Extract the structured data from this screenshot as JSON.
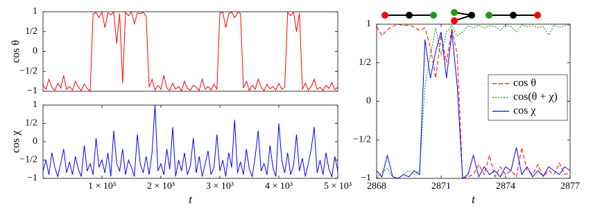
{
  "chart_data": [
    {
      "type": "line",
      "ylabel": "cos θ",
      "x": [
        0,
        50,
        100,
        150,
        200,
        250,
        300,
        350,
        400,
        450,
        500,
        550,
        600,
        650,
        700,
        750,
        800,
        850,
        900,
        950,
        1000,
        1050,
        1100,
        1150,
        1200,
        1250,
        1300,
        1350,
        1400,
        1450,
        1500,
        1550,
        1600,
        1650,
        1700,
        1750,
        1800,
        1850,
        1900,
        1950,
        2000,
        2050,
        2100,
        2150,
        2200,
        2250,
        2300,
        2350,
        2400,
        2450,
        2500,
        2550,
        2600,
        2650,
        2700,
        2750,
        2800,
        2850,
        2900,
        2950,
        3000,
        3050,
        3100,
        3150,
        3200,
        3250,
        3300,
        3350,
        3400,
        3450,
        3500,
        3550,
        3600,
        3650,
        3700,
        3750,
        3800,
        3850,
        3900,
        3950,
        4000,
        4050,
        4100,
        4150,
        4200,
        4250,
        4300,
        4350,
        4400,
        4450,
        4500,
        4550,
        4600,
        4650,
        4700,
        4750,
        4800,
        4850,
        4900,
        4950,
        5000
      ],
      "series": [
        {
          "color": "#ff0000",
          "linestyle": "solid",
          "values": [
            -0.85,
            -0.95,
            -0.7,
            -0.9,
            -0.98,
            -0.8,
            -0.92,
            -0.6,
            -0.95,
            -0.88,
            -0.97,
            -0.75,
            -0.9,
            -0.98,
            -0.82,
            -0.93,
            -0.99,
            0.95,
            0.98,
            0.85,
            0.99,
            0.6,
            0.97,
            0.92,
            0.99,
            0.2,
            0.96,
            -0.8,
            0.98,
            0.9,
            0.99,
            0.7,
            0.97,
            0.95,
            0.99,
            0.88,
            -0.9,
            -0.7,
            -0.97,
            -0.85,
            -0.95,
            -0.6,
            -0.92,
            -0.98,
            -0.8,
            -0.95,
            -0.88,
            -0.99,
            -0.75,
            -0.93,
            -0.97,
            -0.85,
            -0.9,
            -0.98,
            -0.7,
            -0.95,
            -0.88,
            -0.97,
            -0.82,
            -0.95,
            0.97,
            0.99,
            0.6,
            0.95,
            0.99,
            0.85,
            0.98,
            0.96,
            -0.92,
            -0.75,
            -0.98,
            -0.85,
            -0.95,
            -0.7,
            -0.9,
            -0.98,
            -0.82,
            -0.94,
            -0.88,
            -0.97,
            -0.8,
            -0.95,
            -0.9,
            0.98,
            0.9,
            0.99,
            0.5,
            0.97,
            -0.95,
            -0.8,
            -0.97,
            -0.88,
            -0.7,
            -0.95,
            -0.9,
            -0.98,
            -0.85,
            -0.93,
            -0.78,
            -0.96,
            -0.9
          ]
        }
      ],
      "xlim": [
        0,
        5000
      ],
      "ylim": [
        -1,
        1
      ],
      "yticks": [
        {
          "value": -1,
          "label": "−1"
        },
        {
          "value": -0.5,
          "label": "−1/2"
        },
        0,
        {
          "value": 0.5,
          "label": "1/2"
        },
        1
      ]
    },
    {
      "type": "line",
      "ylabel": "cos χ",
      "xlabel": "t",
      "x": [
        0,
        50,
        100,
        150,
        200,
        250,
        300,
        350,
        400,
        450,
        500,
        550,
        600,
        650,
        700,
        750,
        800,
        850,
        900,
        950,
        1000,
        1050,
        1100,
        1150,
        1200,
        1250,
        1300,
        1350,
        1400,
        1450,
        1500,
        1550,
        1600,
        1650,
        1700,
        1750,
        1800,
        1850,
        1900,
        1950,
        2000,
        2050,
        2100,
        2150,
        2200,
        2250,
        2300,
        2350,
        2400,
        2450,
        2500,
        2550,
        2600,
        2650,
        2700,
        2750,
        2800,
        2850,
        2900,
        2950,
        3000,
        3050,
        3100,
        3150,
        3200,
        3250,
        3300,
        3350,
        3400,
        3450,
        3500,
        3550,
        3600,
        3650,
        3700,
        3750,
        3800,
        3850,
        3900,
        3950,
        4000,
        4050,
        4100,
        4150,
        4200,
        4250,
        4300,
        4350,
        4400,
        4450,
        4500,
        4550,
        4600,
        4650,
        4700,
        4750,
        4800,
        4850,
        4900,
        4950,
        5000
      ],
      "series": [
        {
          "color": "#0000ff",
          "linestyle": "solid",
          "values": [
            -0.8,
            -0.5,
            -0.9,
            -0.3,
            -0.7,
            -0.95,
            -0.6,
            -0.2,
            -0.85,
            -0.55,
            -0.9,
            -0.4,
            -0.75,
            -0.95,
            -0.1,
            -0.8,
            -0.6,
            -0.9,
            0.1,
            -0.7,
            -0.5,
            -0.85,
            -0.3,
            -0.95,
            0.3,
            -0.6,
            -0.8,
            -0.2,
            -0.9,
            -0.5,
            -0.7,
            -0.95,
            0.2,
            -0.6,
            -0.85,
            -0.4,
            -0.9,
            -0.3,
            1.0,
            -0.8,
            -0.6,
            -0.9,
            -0.2,
            -0.75,
            0.4,
            -0.95,
            -0.5,
            -0.8,
            -0.3,
            -0.9,
            -0.65,
            0.1,
            -0.85,
            -0.4,
            -0.95,
            -0.6,
            -0.25,
            -0.9,
            -0.7,
            0.2,
            -0.8,
            -0.5,
            -0.95,
            -0.3,
            -0.7,
            0.6,
            -0.85,
            -0.55,
            -0.9,
            -0.2,
            -0.75,
            -0.95,
            -0.4,
            0.3,
            -0.8,
            -0.6,
            -0.9,
            -0.1,
            -0.7,
            -0.95,
            0.5,
            -0.5,
            -0.85,
            -0.3,
            -0.9,
            -0.65,
            0.2,
            -0.8,
            -0.45,
            -0.95,
            -0.6,
            -0.2,
            0.4,
            -0.85,
            -0.5,
            -0.9,
            -0.3,
            -0.75,
            -0.95,
            -0.4,
            -0.8
          ]
        }
      ],
      "xlim": [
        0,
        5000
      ],
      "ylim": [
        -1,
        1
      ],
      "xticks": [
        {
          "value": 1000,
          "label": "1 × 10³"
        },
        {
          "value": 2000,
          "label": "2 × 10³"
        },
        {
          "value": 3000,
          "label": "3 × 10³"
        },
        {
          "value": 4000,
          "label": "4 × 10³"
        },
        {
          "value": 5000,
          "label": "5 × 10³"
        }
      ],
      "yticks": [
        {
          "value": -1,
          "label": "−1"
        },
        {
          "value": -0.5,
          "label": "−1/2"
        },
        0,
        {
          "value": 0.5,
          "label": "1/2"
        },
        1
      ]
    },
    {
      "type": "line",
      "xlabel": "t",
      "legend": "right",
      "x": [
        2868,
        2868.25,
        2868.5,
        2868.75,
        2869,
        2869.25,
        2869.5,
        2869.75,
        2870,
        2870.25,
        2870.5,
        2870.75,
        2871,
        2871.25,
        2871.5,
        2871.75,
        2872,
        2872.25,
        2872.5,
        2872.75,
        2873,
        2873.25,
        2873.5,
        2873.75,
        2874,
        2874.25,
        2874.5,
        2874.75,
        2875,
        2875.25,
        2875.5,
        2875.75,
        2876,
        2876.25,
        2876.5,
        2876.75,
        2877
      ],
      "series": [
        {
          "name": "cos θ",
          "color": "#ff0000",
          "linestyle": "dashed",
          "values": [
            0.97,
            0.85,
            0.93,
            0.97,
            1,
            0.98,
            0.99,
            0.96,
            0.92,
            0.95,
            0.7,
            0.3,
            0.85,
            0.5,
            0.95,
            0.6,
            -1,
            -0.98,
            -0.95,
            -0.82,
            -0.95,
            -0.7,
            -0.98,
            -0.85,
            -0.95,
            -0.9,
            -0.98,
            -0.6,
            -0.9,
            -0.95,
            -0.82,
            -0.98,
            -0.9,
            -0.95,
            -0.8,
            -0.95,
            -0.92
          ]
        },
        {
          "name": "cos(θ + χ)",
          "color": "#008000",
          "linestyle": "dotted",
          "values": [
            -1,
            -0.92,
            -0.87,
            -0.98,
            -1,
            -0.95,
            -0.9,
            -0.95,
            -0.9,
            0.2,
            0.6,
            0.95,
            0.6,
            0.9,
            0.98,
            0.85,
            0.9,
            0.98,
            0.95,
            0.99,
            0.95,
            0.98,
            0.97,
            0.92,
            0.99,
            0.97,
            0.9,
            0.99,
            0.97,
            0.98,
            0.96,
            0.97,
            0.86,
            0.99,
            0.96,
            0.98,
            0.99
          ]
        },
        {
          "name": "cos χ",
          "color": "#0000ff",
          "linestyle": "solid",
          "values": [
            -0.9,
            -0.98,
            -0.7,
            -0.98,
            -1,
            -0.95,
            -0.98,
            -0.9,
            -0.95,
            0.8,
            0.3,
            0.65,
            0.9,
            0.3,
            0.9,
            0.2,
            -1,
            -0.95,
            -0.7,
            -0.98,
            -0.85,
            -0.95,
            -0.9,
            -0.98,
            -0.85,
            -0.9,
            -0.6,
            -0.95,
            -0.85,
            -0.98,
            -0.9,
            -0.97,
            -0.85,
            -0.9,
            -0.95,
            -0.85,
            -0.9
          ]
        }
      ],
      "xlim": [
        2868,
        2877
      ],
      "ylim": [
        -1,
        1
      ],
      "xticks": [
        2868,
        2871,
        2874,
        2877
      ],
      "yticks": [
        {
          "value": -1,
          "label": "−1"
        },
        {
          "value": -0.5,
          "label": "−1/2"
        },
        0,
        {
          "value": 0.5,
          "label": "1/2"
        },
        1
      ]
    }
  ]
}
